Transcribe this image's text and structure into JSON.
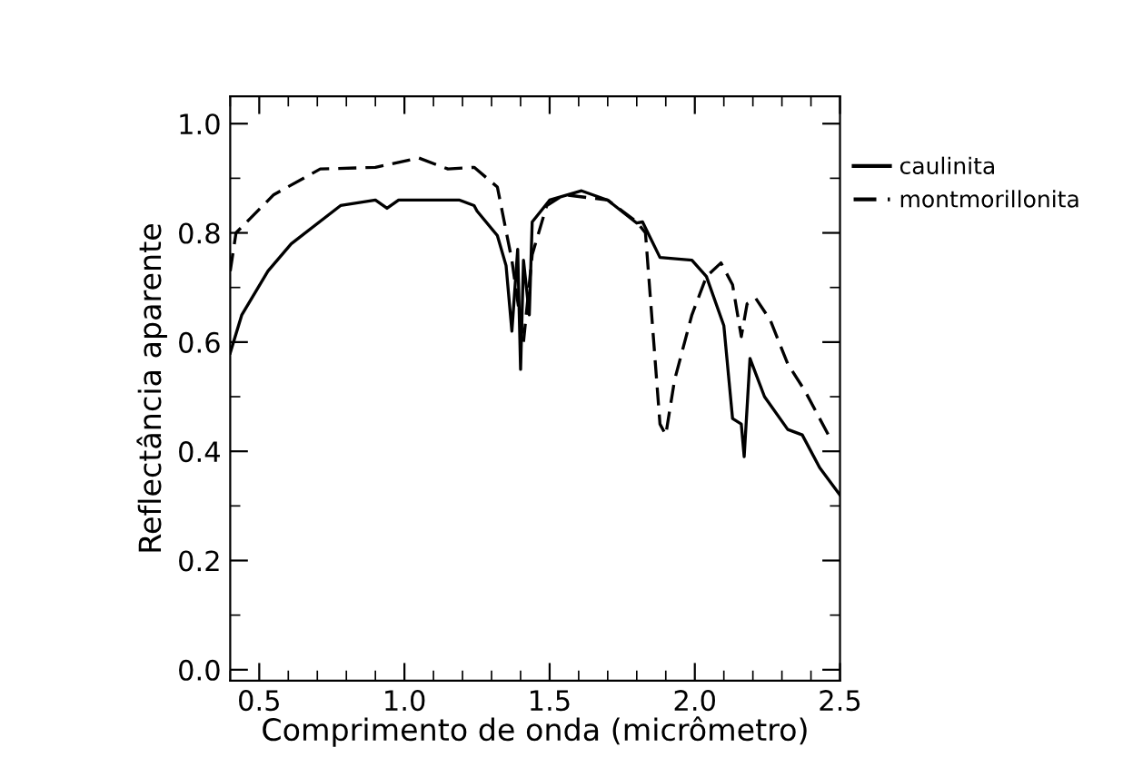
{
  "chart_data": {
    "type": "line",
    "xlabel": "Comprimento de onda (micrômetro)",
    "ylabel": "Reflectância aparente",
    "xlim": [
      0.4,
      2.5
    ],
    "ylim": [
      -0.02,
      1.05
    ],
    "xticks": [
      {
        "value": 0.5,
        "label": "0.5"
      },
      {
        "value": 1.0,
        "label": "1.0"
      },
      {
        "value": 1.5,
        "label": "1.5"
      },
      {
        "value": 2.0,
        "label": "2.0"
      },
      {
        "value": 2.5,
        "label": "2.5"
      }
    ],
    "yticks": [
      {
        "value": 0.0,
        "label": "0.0"
      },
      {
        "value": 0.2,
        "label": "0.2"
      },
      {
        "value": 0.4,
        "label": "0.4"
      },
      {
        "value": 0.6,
        "label": "0.6"
      },
      {
        "value": 0.8,
        "label": "0.8"
      },
      {
        "value": 1.0,
        "label": "1.0"
      }
    ],
    "grid": false,
    "legend": "top right",
    "marker": "none",
    "series": [
      {
        "name": "caulinita",
        "color": "#000000",
        "line_style": "solid",
        "x": [
          0.4,
          0.44,
          0.53,
          0.61,
          0.78,
          0.9,
          0.94,
          0.98,
          1.19,
          1.24,
          1.25,
          1.32,
          1.35,
          1.37,
          1.39,
          1.4,
          1.41,
          1.43,
          1.44,
          1.5,
          1.61,
          1.7,
          1.8,
          1.82,
          1.88,
          1.99,
          2.04,
          2.1,
          2.13,
          2.16,
          2.17,
          2.19,
          2.24,
          2.32,
          2.37,
          2.43,
          2.5
        ],
        "values": [
          0.58,
          0.65,
          0.73,
          0.78,
          0.85,
          0.86,
          0.845,
          0.86,
          0.86,
          0.85,
          0.84,
          0.795,
          0.74,
          0.62,
          0.77,
          0.55,
          0.75,
          0.65,
          0.82,
          0.86,
          0.877,
          0.86,
          0.818,
          0.82,
          0.755,
          0.75,
          0.72,
          0.63,
          0.46,
          0.45,
          0.39,
          0.57,
          0.5,
          0.44,
          0.43,
          0.37,
          0.32
        ]
      },
      {
        "name": "montmorillonita",
        "color": "#000000",
        "line_style": "dashed",
        "x": [
          0.4,
          0.42,
          0.55,
          0.71,
          0.9,
          1.05,
          1.15,
          1.24,
          1.32,
          1.37,
          1.41,
          1.44,
          1.49,
          1.55,
          1.7,
          1.8,
          1.83,
          1.88,
          1.9,
          1.93,
          1.99,
          2.04,
          2.09,
          2.13,
          2.16,
          2.18,
          2.21,
          2.26,
          2.32,
          2.38,
          2.46
        ],
        "values": [
          0.73,
          0.8,
          0.87,
          0.917,
          0.92,
          0.937,
          0.917,
          0.92,
          0.884,
          0.75,
          0.6,
          0.76,
          0.85,
          0.87,
          0.86,
          0.82,
          0.8,
          0.45,
          0.43,
          0.53,
          0.65,
          0.72,
          0.745,
          0.705,
          0.61,
          0.67,
          0.68,
          0.64,
          0.56,
          0.51,
          0.43
        ]
      }
    ]
  }
}
